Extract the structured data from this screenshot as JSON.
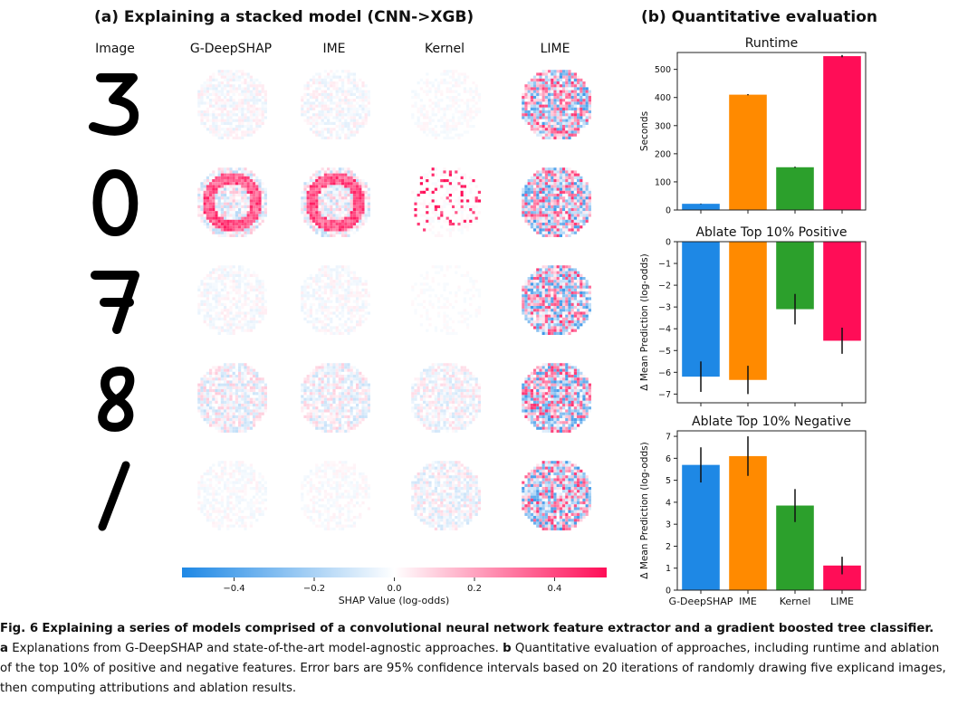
{
  "panel_a": {
    "title": "(a) Explaining a stacked model (CNN->XGB)",
    "columns": [
      "Image",
      "G-DeepSHAP",
      "IME",
      "Kernel",
      "LIME"
    ],
    "digits": [
      "3",
      "0",
      "7",
      "8",
      "1"
    ],
    "colorbar": {
      "label": "SHAP Value (log-odds)",
      "ticks": [
        -0.4,
        -0.2,
        0.0,
        0.2,
        0.4
      ],
      "tick_labels": [
        "−0.4",
        "−0.2",
        "0.0",
        "0.2",
        "0.4"
      ],
      "range": [
        -0.53,
        0.53
      ],
      "negative_color": "#1e88e5",
      "positive_color": "#ff0d57"
    }
  },
  "panel_b": {
    "title": "(b) Quantitative evaluation"
  },
  "chart_data": [
    {
      "type": "bar",
      "title": "Runtime",
      "ylabel": "Seconds",
      "categories": [
        "G-DeepSHAP",
        "IME",
        "Kernel",
        "LIME"
      ],
      "values": [
        22,
        410,
        152,
        547
      ],
      "error": [
        1,
        2,
        2,
        4
      ],
      "ylim": [
        0,
        560
      ],
      "yticks": [
        0,
        100,
        200,
        300,
        400,
        500
      ],
      "colors": [
        "#1e88e5",
        "#ff8a00",
        "#2ca02c",
        "#ff0d57"
      ]
    },
    {
      "type": "bar",
      "title": "Ablate Top 10% Positive",
      "ylabel": "Δ Mean Prediction (log-odds)",
      "categories": [
        "G-DeepSHAP",
        "IME",
        "Kernel",
        "LIME"
      ],
      "values": [
        -6.2,
        -6.35,
        -3.1,
        -4.55
      ],
      "error": [
        0.7,
        0.65,
        0.7,
        0.6
      ],
      "ylim": [
        -7.4,
        0
      ],
      "yticks": [
        0,
        -1,
        -2,
        -3,
        -4,
        -5,
        -6,
        -7
      ],
      "colors": [
        "#1e88e5",
        "#ff8a00",
        "#2ca02c",
        "#ff0d57"
      ]
    },
    {
      "type": "bar",
      "title": "Ablate Top 10% Negative",
      "ylabel": "Δ Mean Prediction (log-odds)",
      "categories": [
        "G-DeepSHAP",
        "IME",
        "Kernel",
        "LIME"
      ],
      "values": [
        5.7,
        6.1,
        3.85,
        1.12
      ],
      "error": [
        0.8,
        0.9,
        0.75,
        0.4
      ],
      "ylim": [
        0,
        7.25
      ],
      "yticks": [
        0,
        1,
        2,
        3,
        4,
        5,
        6,
        7
      ],
      "colors": [
        "#1e88e5",
        "#ff8a00",
        "#2ca02c",
        "#ff0d57"
      ]
    }
  ],
  "caption": {
    "label": "Fig. 6",
    "title": "Explaining a series of models comprised of a convolutional neural network feature extractor and a gradient boosted tree classifier.",
    "a_letter": "a",
    "a_text": "Explanations from G-DeepSHAP and state-of-the-art model-agnostic approaches.",
    "b_letter": "b",
    "b_text_1": "Quantitative evaluation of approaches, including runtime and ablation",
    "line2": "of the top 10% of positive and negative features. Error bars are 95% confidence intervals based on 20 iterations of randomly drawing five explicand images,",
    "line3": "then computing attributions and ablation results."
  }
}
